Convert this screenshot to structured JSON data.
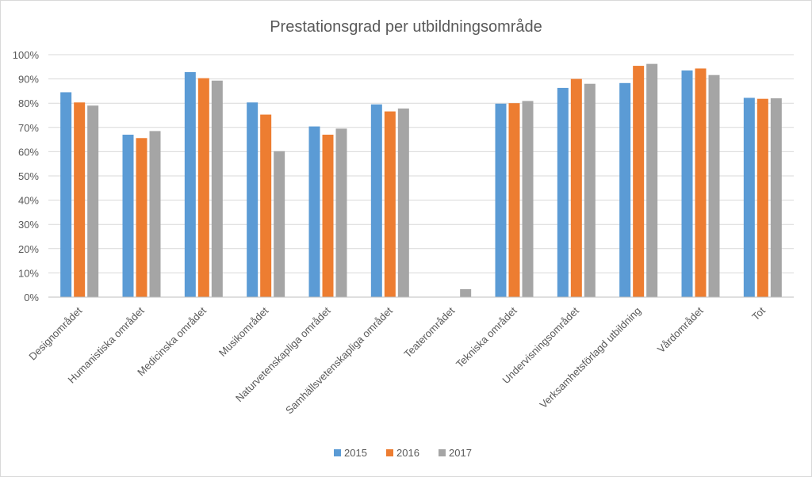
{
  "chart_data": {
    "type": "bar",
    "title": "Prestationsgrad per utbildningsområde",
    "categories": [
      "Designområdet",
      "Humanistiska området",
      "Medicinska området",
      "Musikområdet",
      "Naturvetenskapliga området",
      "Samhällsvetenskapliga området",
      "Teaterområdet",
      "Tekniska området",
      "Undervisningsområdet",
      "Verksamhetsförlagd utbildning",
      "Vårdområdet",
      "Tot"
    ],
    "series": [
      {
        "name": "2015",
        "color": "#5b9bd5",
        "values": [
          84.5,
          67,
          92.8,
          80.3,
          70.4,
          79.5,
          null,
          79.8,
          86.3,
          88.3,
          93.5,
          82.2
        ]
      },
      {
        "name": "2016",
        "color": "#ed7d31",
        "values": [
          80.3,
          65.6,
          90.3,
          75.3,
          67,
          76.6,
          null,
          80,
          90,
          95.4,
          94.3,
          81.8
        ]
      },
      {
        "name": "2017",
        "color": "#a5a5a5",
        "values": [
          79,
          68.5,
          89.3,
          60.2,
          69.5,
          77.8,
          3.3,
          80.9,
          88,
          96.2,
          91.6,
          82
        ]
      }
    ],
    "yticks": [
      "0%",
      "10%",
      "20%",
      "30%",
      "40%",
      "50%",
      "60%",
      "70%",
      "80%",
      "90%",
      "100%"
    ],
    "ylim": [
      0,
      100
    ],
    "xlabel": "",
    "ylabel": "",
    "grid": true,
    "legend_position": "bottom"
  }
}
